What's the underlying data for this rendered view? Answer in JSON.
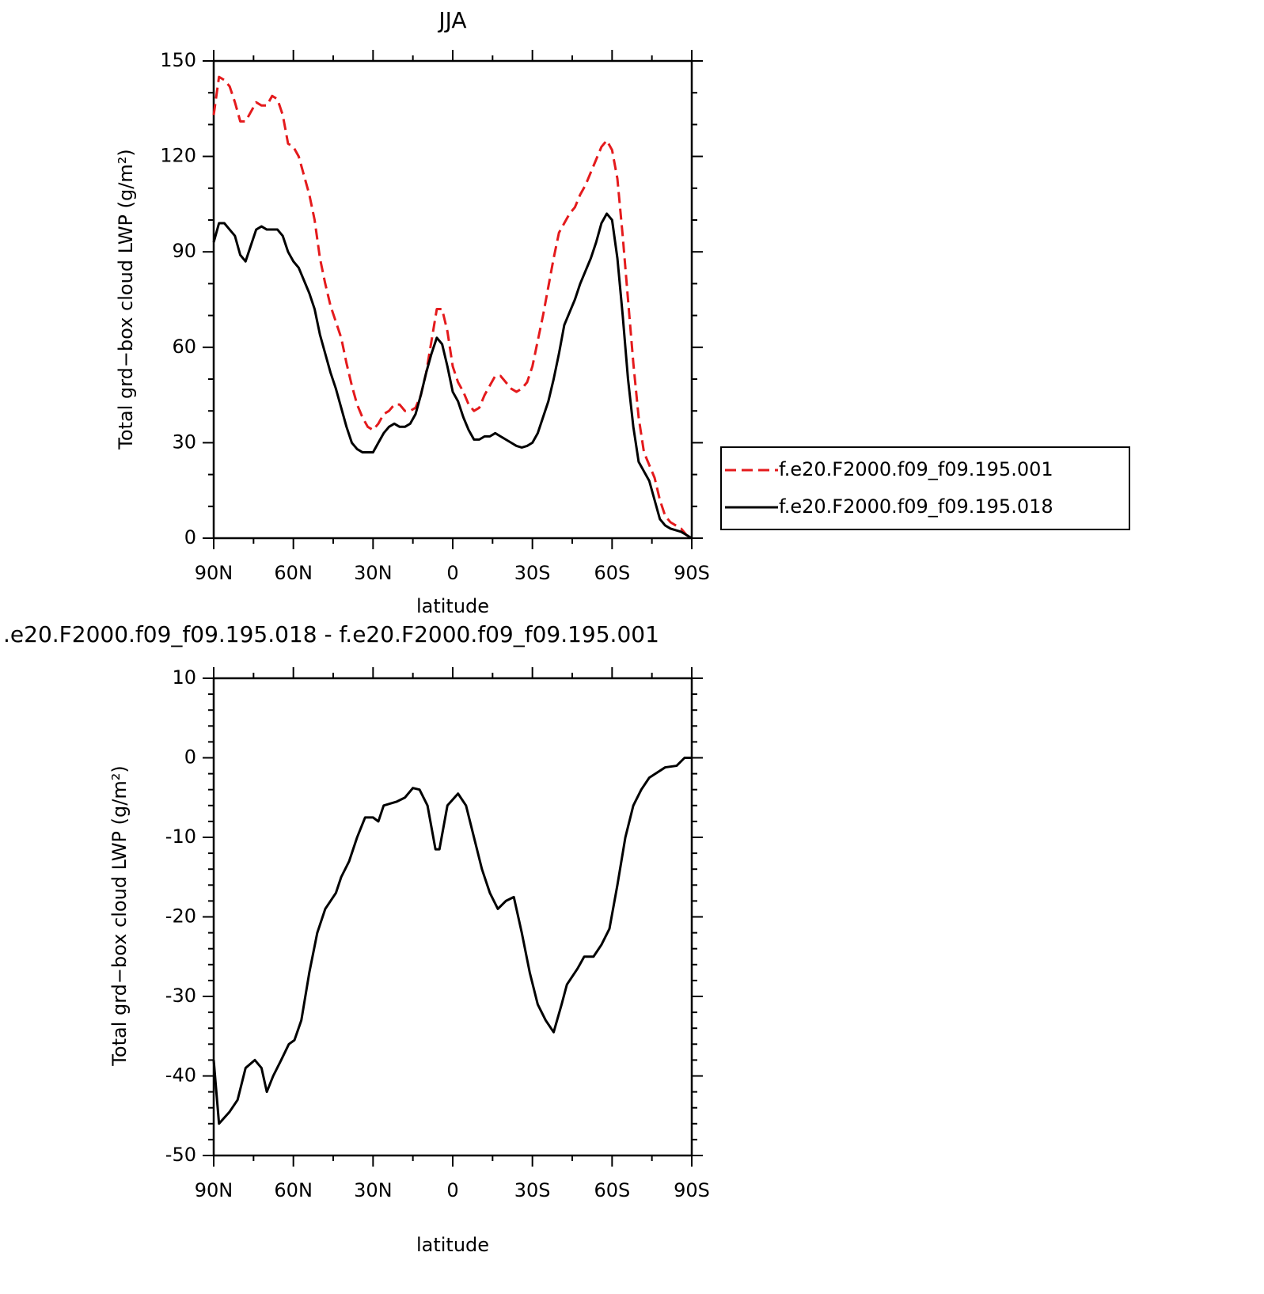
{
  "chart_data": [
    {
      "type": "line",
      "title": "JJA",
      "xlabel": "latitude",
      "ylabel": "Total grd−box cloud LWP (g/m²)",
      "xlim": [
        90,
        -90
      ],
      "xticks": [
        {
          "value": 90,
          "label": "90N"
        },
        {
          "value": 60,
          "label": "60N"
        },
        {
          "value": 30,
          "label": "30N"
        },
        0,
        {
          "value": -30,
          "label": "30S"
        },
        {
          "value": -60,
          "label": "60S"
        },
        {
          "value": -90,
          "label": "90S"
        }
      ],
      "xminorticks": [
        75,
        45,
        15,
        -15,
        -45,
        -75
      ],
      "ylim": [
        0,
        150
      ],
      "yticks": [
        0,
        30,
        60,
        90,
        120,
        150
      ],
      "yminorticks": [
        10,
        20,
        40,
        50,
        70,
        80,
        100,
        110,
        130,
        140
      ],
      "legend": "right",
      "x": [
        90,
        88,
        86,
        84,
        82,
        80,
        78,
        76,
        74,
        72,
        70,
        68,
        66,
        64,
        62,
        60,
        58,
        56,
        54,
        52,
        50,
        48,
        46,
        44,
        42,
        40,
        38,
        36,
        34,
        32,
        30,
        28,
        26,
        24,
        22,
        20,
        18,
        16,
        14,
        12,
        10,
        8,
        6,
        4,
        2,
        0,
        -2,
        -4,
        -6,
        -8,
        -10,
        -12,
        -14,
        -16,
        -18,
        -20,
        -22,
        -24,
        -26,
        -28,
        -30,
        -32,
        -34,
        -36,
        -38,
        -40,
        -42,
        -44,
        -46,
        -48,
        -50,
        -52,
        -54,
        -56,
        -58,
        -60,
        -62,
        -64,
        -66,
        -68,
        -70,
        -72,
        -74,
        -76,
        -78,
        -80,
        -82,
        -84,
        -86,
        -88,
        -90
      ],
      "series": [
        {
          "name": "f.e20.F2000.f09_f09.195.001",
          "color": "#e41a1c",
          "linestyle": "dashed",
          "values": [
            133,
            145,
            144,
            142,
            137,
            131,
            131,
            134,
            137,
            136,
            136,
            139,
            138,
            133,
            124,
            123,
            120,
            114,
            108,
            100,
            88,
            80,
            73,
            68,
            63,
            55,
            48,
            42,
            38,
            35,
            34,
            36,
            39,
            40,
            42,
            42,
            40,
            40,
            41,
            45,
            52,
            62,
            72,
            72,
            65,
            54,
            49,
            46,
            42,
            40,
            41,
            45,
            48,
            51,
            51,
            49,
            47,
            46,
            47,
            49,
            54,
            62,
            70,
            79,
            88,
            96,
            99,
            102,
            104,
            108,
            111,
            115,
            119,
            123,
            125,
            122,
            113,
            95,
            75,
            55,
            38,
            27,
            23,
            19,
            12,
            7,
            5,
            4,
            3,
            1,
            0
          ]
        },
        {
          "name": "f.e20.F2000.f09_f09.195.018",
          "color": "#000000",
          "linestyle": "solid",
          "values": [
            93,
            99,
            99,
            97,
            95,
            89,
            87,
            92,
            97,
            98,
            97,
            97,
            97,
            95,
            90,
            87,
            85,
            81,
            77,
            72,
            64,
            58,
            52,
            47,
            41,
            35,
            30,
            28,
            27,
            27,
            27,
            30,
            33,
            35,
            36,
            35,
            35,
            36,
            39,
            45,
            52,
            58,
            63,
            61,
            54,
            46,
            43,
            38,
            34,
            31,
            31,
            32,
            32,
            33,
            32,
            31,
            30,
            29,
            28.5,
            29,
            30,
            33,
            38,
            43,
            50,
            58,
            67,
            71,
            75,
            80,
            84,
            88,
            93,
            99,
            102,
            100,
            88,
            70,
            50,
            35,
            24,
            21,
            18,
            12,
            6,
            4,
            3,
            2.5,
            2,
            1,
            0
          ]
        }
      ]
    },
    {
      "type": "line",
      "title": ".e20.F2000.f09_f09.195.018 - f.e20.F2000.f09_f09.195.001",
      "xlabel": "latitude",
      "ylabel": "Total grd−box cloud LWP (g/m²)",
      "xlim": [
        90,
        -90
      ],
      "xticks": [
        {
          "value": 90,
          "label": "90N"
        },
        {
          "value": 60,
          "label": "60N"
        },
        {
          "value": 30,
          "label": "30N"
        },
        0,
        {
          "value": -30,
          "label": "30S"
        },
        {
          "value": -60,
          "label": "60S"
        },
        {
          "value": -90,
          "label": "90S"
        }
      ],
      "xminorticks": [
        75,
        45,
        15,
        -15,
        -45,
        -75
      ],
      "ylim": [
        -50,
        10
      ],
      "yticks": [
        -50,
        -40,
        -30,
        -20,
        -10,
        0,
        10
      ],
      "yminorticks": [
        -48,
        -46,
        -44,
        -42,
        -38,
        -36,
        -34,
        -32,
        -28,
        -26,
        -24,
        -22,
        -18,
        -16,
        -14,
        -12,
        -8,
        -6,
        -4,
        -2,
        2,
        4,
        6,
        8
      ],
      "x": [
        90,
        88,
        84,
        81,
        78,
        74.5,
        72,
        70,
        67.6,
        64.6,
        61.7,
        59.6,
        57,
        54,
        51,
        48,
        44,
        42,
        39,
        36,
        33,
        30,
        28,
        26,
        21,
        18,
        15,
        12.5,
        9.5,
        6.5,
        5,
        2,
        -2,
        -5,
        -8,
        -11,
        -14,
        -17,
        -20,
        -23,
        -26,
        -29,
        -32,
        -35,
        -38,
        -41,
        -43,
        -47,
        -49.5,
        -53,
        -56,
        -59,
        -62,
        -65,
        -68,
        -71,
        -74,
        -80,
        -84.3,
        -87.3,
        -90
      ],
      "series": [
        {
          "color": "#000000",
          "linestyle": "solid",
          "values": [
            -38,
            -46,
            -44.5,
            -43,
            -39,
            -38,
            -39,
            -42,
            -40,
            -38,
            -36,
            -35.5,
            -33,
            -27,
            -22,
            -19,
            -17,
            -15,
            -13,
            -10,
            -7.5,
            -7.5,
            -8,
            -6,
            -5.5,
            -5,
            -3.8,
            -4,
            -6,
            -11.5,
            -11.5,
            -6,
            -4.5,
            -6,
            -10,
            -14,
            -17,
            -19,
            -18,
            -17.5,
            -22,
            -27,
            -31,
            -33,
            -34.5,
            -31,
            -28.5,
            -26.5,
            -25,
            -25,
            -23.5,
            -21.5,
            -16,
            -10,
            -6,
            -4,
            -2.5,
            -1.2,
            -1,
            0,
            0
          ]
        }
      ]
    }
  ]
}
